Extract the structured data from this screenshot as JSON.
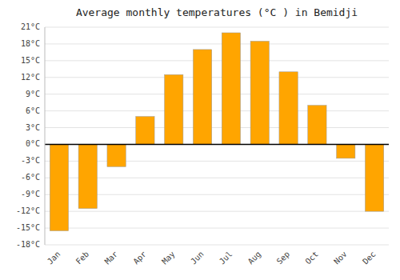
{
  "chart_data": {
    "type": "bar",
    "title": "Average monthly temperatures (°C ) in Bemidji",
    "categories": [
      "Jan",
      "Feb",
      "Mar",
      "Apr",
      "May",
      "Jun",
      "Jul",
      "Aug",
      "Sep",
      "Oct",
      "Nov",
      "Dec"
    ],
    "values": [
      -15.5,
      -11.5,
      -4.0,
      5.0,
      12.5,
      17.0,
      20.0,
      18.5,
      13.0,
      7.0,
      -2.5,
      -12.0
    ],
    "color": "#FFA500",
    "ylim": [
      -18,
      21
    ],
    "yticks": [
      {
        "value": -18,
        "label": "-18°C"
      },
      {
        "value": -15,
        "label": "-15°C"
      },
      {
        "value": -12,
        "label": "-12°C"
      },
      {
        "value": -9,
        "label": "-9°C"
      },
      {
        "value": -6,
        "label": "-6°C"
      },
      {
        "value": -3,
        "label": "-3°C"
      },
      {
        "value": 0,
        "label": "0°C"
      },
      {
        "value": 3,
        "label": "3°C"
      },
      {
        "value": 6,
        "label": "6°C"
      },
      {
        "value": 9,
        "label": "9°C"
      },
      {
        "value": 12,
        "label": "12°C"
      },
      {
        "value": 15,
        "label": "15°C"
      },
      {
        "value": 18,
        "label": "18°C"
      },
      {
        "value": 21,
        "label": "21°C"
      }
    ],
    "grid": true
  }
}
